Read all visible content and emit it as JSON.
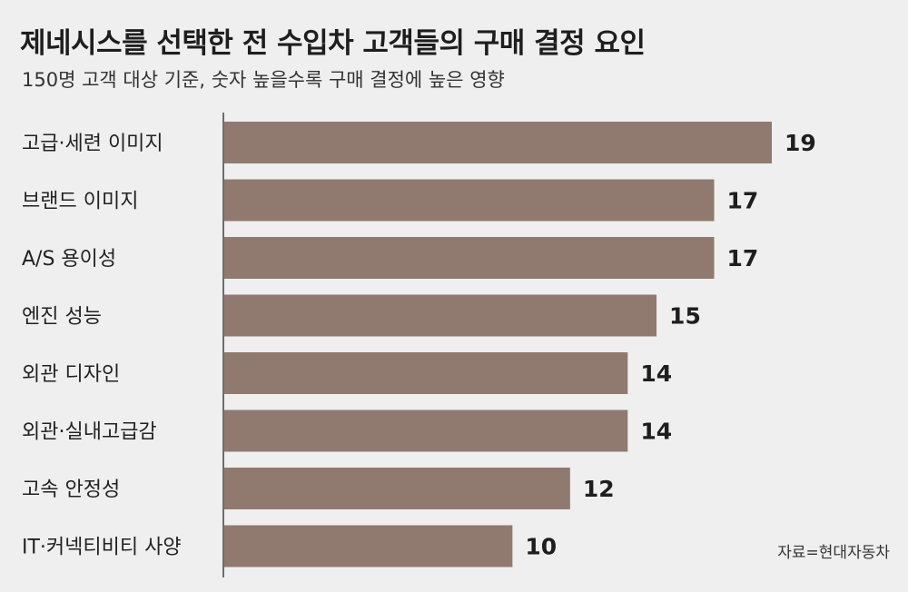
{
  "header": {
    "title": "제네시스를 선택한 전 수입차 고객들의 구매 결정 요인",
    "subtitle": "150명 고객 대상 기준, 숫자 높을수록 구매 결정에 높은 영향"
  },
  "source": "자료=현대자동차",
  "colors": {
    "bar": "#907a6f",
    "axis": "#444444",
    "background": "#efefef"
  },
  "chart_data": {
    "type": "bar",
    "orientation": "horizontal",
    "categories": [
      "고급·세련 이미지",
      "브랜드 이미지",
      "A/S 용이성",
      "엔진 성능",
      "외관 디자인",
      "외관·실내고급감",
      "고속 안정성",
      "IT·커넥티비티 사양"
    ],
    "values": [
      19,
      17,
      17,
      15,
      14,
      14,
      12,
      10
    ],
    "data_labels": [
      "19",
      "17",
      "17",
      "15",
      "14",
      "14",
      "12",
      "10"
    ],
    "title": "제네시스를 선택한 전 수입차 고객들의 구매 결정 요인",
    "xlim": [
      0,
      19
    ],
    "grid": false
  }
}
